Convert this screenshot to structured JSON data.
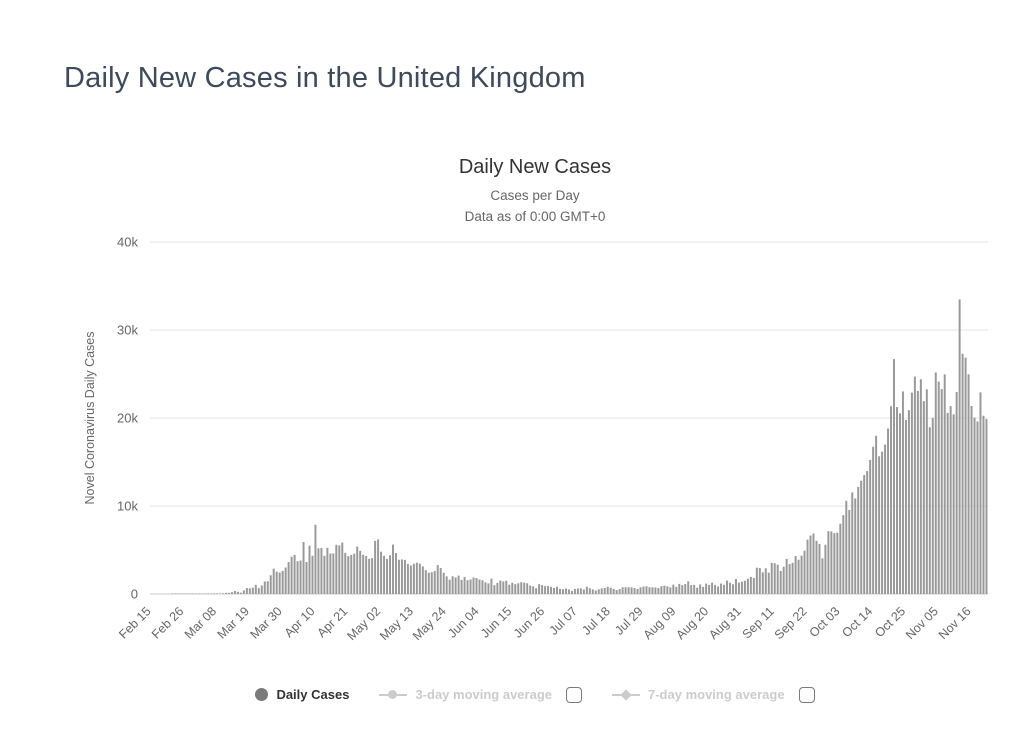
{
  "page": {
    "title": "Daily New Cases in the United Kingdom"
  },
  "chart": {
    "title": "Daily New Cases",
    "subtitle1": "Cases per Day",
    "subtitle2": "Data as of 0:00 GMT+0"
  },
  "legend": {
    "items": [
      {
        "label": "Daily Cases",
        "marker": "filled-circle",
        "active": true,
        "has_checkbox": false
      },
      {
        "label": "3-day moving average",
        "marker": "line-circle",
        "active": false,
        "has_checkbox": true
      },
      {
        "label": "7-day moving average",
        "marker": "line-diamond",
        "active": false,
        "has_checkbox": true
      }
    ]
  },
  "colors": {
    "page_title": "#3d4a5c",
    "bar": "#999999",
    "grid": "#e6e6e6",
    "axis_line": "#cccccc",
    "axis_text": "#666666",
    "legend_active": "#333333",
    "legend_disabled": "#cccccc"
  },
  "chart_data": {
    "type": "bar",
    "title": "Daily New Cases",
    "subtitle": "Cases per Day — Data as of 0:00 GMT+0",
    "ylabel": "Novel Coronavirus Daily Cases",
    "xlabel": "",
    "ylim": [
      0,
      40000
    ],
    "ytick_labels": [
      "0",
      "10k",
      "20k",
      "30k",
      "40k"
    ],
    "grid": true,
    "legend_position": "bottom",
    "x_start": "Feb 15",
    "x_cadence": "daily",
    "xtick_interval": 11,
    "xtick_labels": [
      "Feb 15",
      "Feb 26",
      "Mar 08",
      "Mar 19",
      "Mar 30",
      "Apr 10",
      "Apr 21",
      "May 02",
      "May 13",
      "May 24",
      "Jun 04",
      "Jun 15",
      "Jun 26",
      "Jul 07",
      "Jul 18",
      "Jul 29",
      "Aug 09",
      "Aug 20",
      "Aug 31",
      "Sep 11",
      "Sep 22",
      "Oct 03",
      "Oct 14",
      "Oct 25",
      "Nov 05",
      "Nov 16"
    ],
    "series": [
      {
        "name": "Daily Cases",
        "values": [
          0,
          0,
          0,
          0,
          0,
          0,
          0,
          1,
          2,
          2,
          3,
          6,
          9,
          13,
          20,
          25,
          12,
          35,
          46,
          65,
          48,
          63,
          67,
          48,
          83,
          134,
          130,
          208,
          342,
          251,
          152,
          407,
          676,
          643,
          714,
          1035,
          665,
          967,
          1427,
          1452,
          2129,
          2885,
          2546,
          2433,
          2619,
          3009,
          3634,
          4244,
          4450,
          3735,
          3802,
          5903,
          3634,
          5491,
          4344,
          7860,
          5195,
          5233,
          4342,
          5252,
          4603,
          4617,
          5599,
          5525,
          5850,
          4676,
          4301,
          4451,
          4583,
          5386,
          4913,
          4463,
          4310,
          3996,
          4076,
          6032,
          6201,
          4806,
          4339,
          3985,
          4406,
          5614,
          4649,
          3896,
          3923,
          3877,
          3403,
          3242,
          3446,
          3560,
          3451,
          3142,
          2711,
          2412,
          2472,
          2615,
          3287,
          2959,
          2405,
          2004,
          1625,
          2013,
          1887,
          2095,
          1604,
          1936,
          1570,
          1653,
          1871,
          1805,
          1650,
          1557,
          1326,
          1205,
          1741,
          1003,
          1266,
          1541,
          1425,
          1514,
          1056,
          1279,
          1115,
          1218,
          1346,
          1295,
          1221,
          958,
          874,
          653,
          1118,
          1006,
          890,
          901,
          815,
          689,
          829,
          576,
          544,
          624,
          516,
          352,
          581,
          630,
          642,
          512,
          820,
          650,
          530,
          398,
          538,
          642,
          687,
          827,
          726,
          580,
          445,
          560,
          769,
          770,
          768,
          747,
          685,
          581,
          763,
          846,
          880,
          771,
          758,
          743,
          670,
          892,
          950,
          871,
          758,
          1062,
          816,
          1148,
          1009,
          1129,
          1441,
          1012,
          1040,
          713,
          1089,
          812,
          1182,
          1033,
          1288,
          1041,
          853,
          1184,
          1048,
          1522,
          1276,
          1108,
          1715,
          1295,
          1406,
          1508,
          1735,
          1940,
          1813,
          2988,
          2948,
          2460,
          2919,
          2422,
          3539,
          3497,
          3330,
          2621,
          3105,
          3991,
          3395,
          3539,
          4322,
          3899,
          4368,
          4926,
          6178,
          6634,
          6874,
          6042,
          5693,
          4044,
          5599,
          7143,
          7108,
          6914,
          6968,
          7982,
          8961,
          10594,
          9542,
          11540,
          10864,
          12165,
          12872,
          13520,
          13972,
          15234,
          16724,
          17980,
          15650,
          16171,
          16982,
          18804,
          21331,
          26688,
          21242,
          20530,
          23012,
          19790,
          20890,
          22885,
          24701,
          23065,
          24405,
          21915,
          23254,
          18950,
          20018,
          25177,
          24141,
          23287,
          24957,
          20572,
          21350,
          20412,
          22950,
          33470,
          27301,
          26860,
          24962,
          21363,
          20051,
          19609,
          22915,
          20252,
          19875
        ]
      }
    ]
  }
}
